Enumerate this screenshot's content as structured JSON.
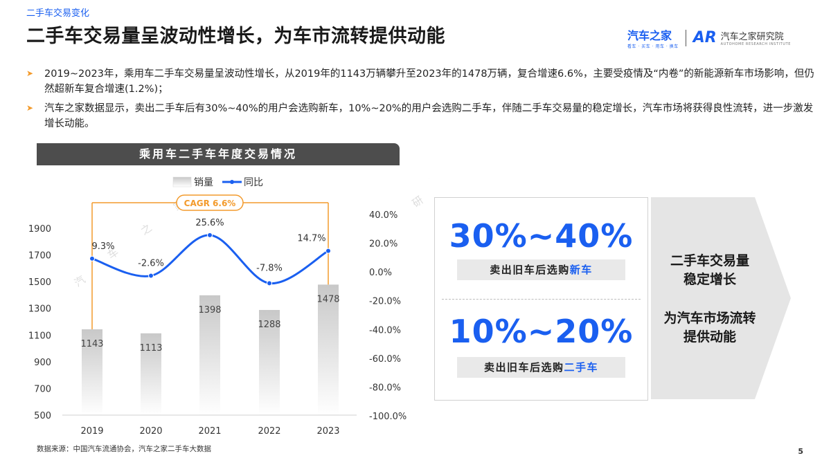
{
  "header": {
    "section_tag": "二手车交易变化",
    "title": "二手车交易量呈波动性增长，为车市流转提供动能"
  },
  "logo": {
    "brand": "汽车之家",
    "brand_tagline": "看车 · 买车 · 用车 · 换车",
    "mark": "AR",
    "institute": "汽车之家研究院",
    "institute_en": "AUTOHOME RESEARCH INSTITUTE"
  },
  "bullets": [
    "2019~2023年，乘用车二手车交易量呈波动性增长，从2019年的1143万辆攀升至2023年的1478万辆，复合增速6.6%，主要受疫情及“内卷”的新能源新车市场影响，但仍然超新车复合增速(1.2%)；",
    "汽车之家数据显示，卖出二手车后有30%~40%的用户会选购新车，10%~20%的用户会选购二手车，伴随二手车交易量的稳定增长，汽车市场将获得良性流转，进一步激发增长动能。"
  ],
  "chart_data": {
    "type": "bar",
    "title": "乘用车二手车年度交易情况",
    "categories": [
      "2019",
      "2020",
      "2021",
      "2022",
      "2023"
    ],
    "series": [
      {
        "name": "销量",
        "type": "bar",
        "axis": "left",
        "values": [
          1143,
          1113,
          1398,
          1288,
          1478
        ]
      },
      {
        "name": "同比",
        "type": "line",
        "axis": "right",
        "values": [
          9.3,
          -2.6,
          25.6,
          -7.8,
          14.7
        ]
      }
    ],
    "y_left": {
      "min": 500,
      "max": 1900,
      "ticks": [
        500,
        700,
        900,
        1100,
        1300,
        1500,
        1700,
        1900
      ]
    },
    "y_right": {
      "min": -100,
      "max": 40,
      "ticks": [
        -100,
        -80,
        -60,
        -40,
        -20,
        0,
        20,
        40
      ],
      "format": "percent_1dp"
    },
    "legend": {
      "position": "top-center",
      "items": [
        "销量",
        "同比"
      ]
    },
    "annotation": {
      "text": "CAGR 6.6%",
      "from": "2019",
      "to": "2023"
    },
    "grid": false,
    "colors": {
      "bar_top": "#c8c8c8",
      "bar_bottom": "#ffffff",
      "line": "#1a5ff0",
      "annotation": "#f39a2b"
    }
  },
  "panel": {
    "stats": [
      {
        "value": "30%~40%",
        "label_prefix": "卖出旧车后选购",
        "label_highlight": "新车"
      },
      {
        "value": "10%~20%",
        "label_prefix": "卖出旧车后选购",
        "label_highlight": "二手车"
      }
    ],
    "arrow_lines": [
      "二手车交易量",
      "稳定增长",
      "为汽车市场流转",
      "提供动能"
    ]
  },
  "footer": {
    "source": "数据来源：中国汽车流通协会，汽车之家二手车大数据",
    "page_number": "5"
  }
}
